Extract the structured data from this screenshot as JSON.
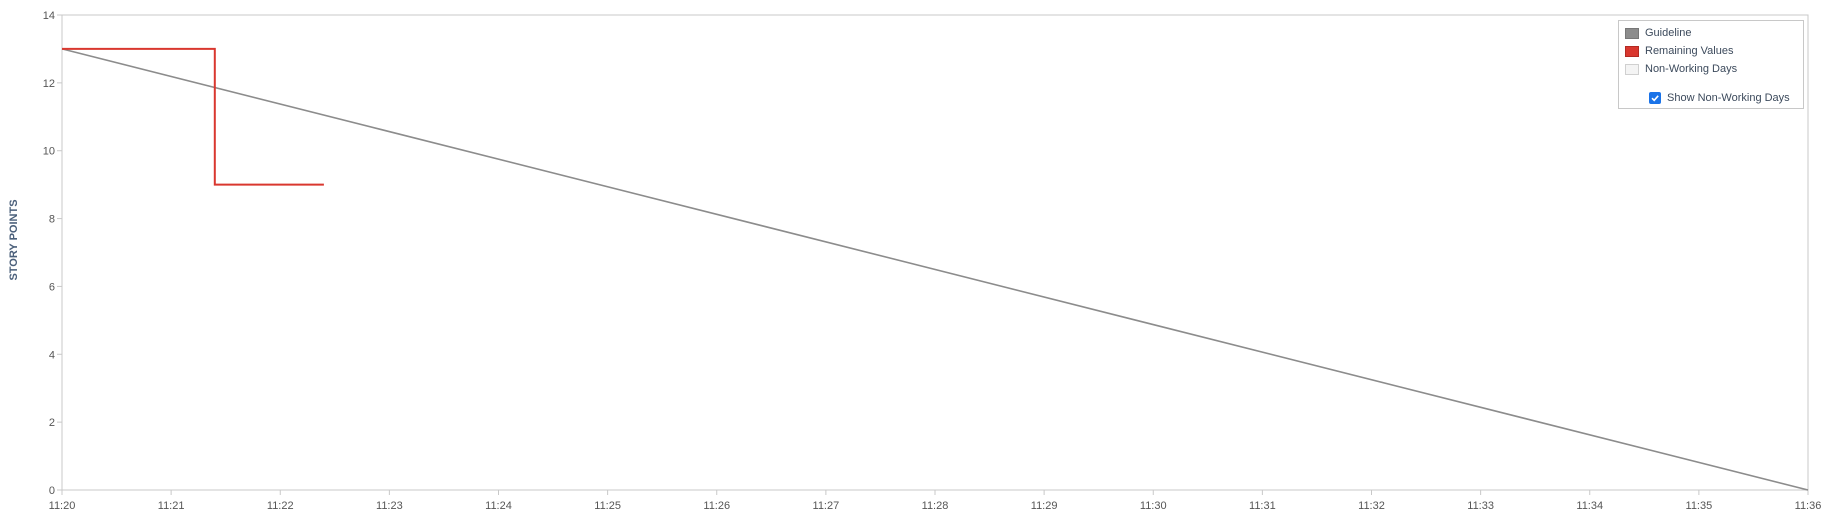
{
  "chart_data": {
    "type": "line",
    "ylabel": "STORY POINTS",
    "xlabel": "",
    "ylim": [
      0,
      14
    ],
    "yticks": [
      0,
      2,
      4,
      6,
      8,
      10,
      12,
      14
    ],
    "xticks": [
      "11:20",
      "11:21",
      "11:22",
      "11:23",
      "11:24",
      "11:25",
      "11:26",
      "11:27",
      "11:28",
      "11:29",
      "11:30",
      "11:31",
      "11:32",
      "11:33",
      "11:34",
      "11:35",
      "11:36"
    ],
    "xlim": [
      "11:20",
      "11:36"
    ],
    "grid": false,
    "legend_position": "top-right",
    "series": [
      {
        "name": "Guideline",
        "color": "#8c8c8c",
        "points": [
          {
            "x": "11:20",
            "y": 13
          },
          {
            "x": "11:36",
            "y": 0
          }
        ]
      },
      {
        "name": "Remaining Values",
        "color": "#d9372f",
        "step": true,
        "points": [
          {
            "x": "11:20",
            "y": 13
          },
          {
            "x": "11:21:24",
            "y": 13
          },
          {
            "x": "11:21:24",
            "y": 9
          },
          {
            "x": "11:22:24",
            "y": 9
          }
        ]
      }
    ]
  },
  "legend": {
    "items": [
      {
        "label": "Guideline",
        "icon": "guideline-swatch"
      },
      {
        "label": "Remaining Values",
        "icon": "remaining-values-swatch"
      },
      {
        "label": "Non-Working Days",
        "icon": "non-working-days-swatch"
      }
    ],
    "checkbox_label": "Show Non-Working Days",
    "checkbox_checked": true
  }
}
